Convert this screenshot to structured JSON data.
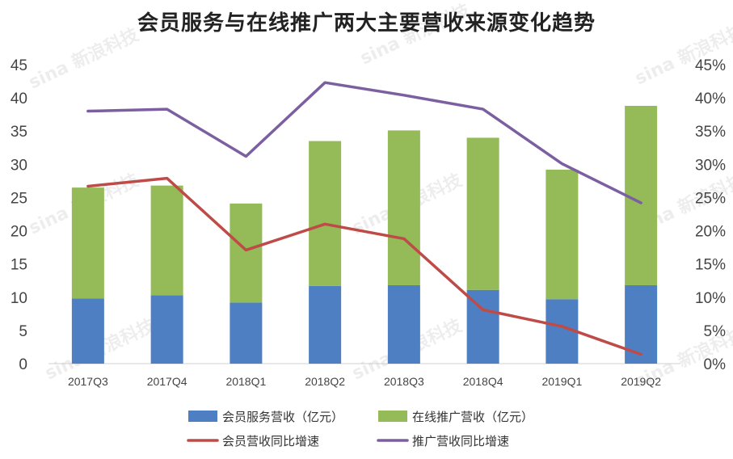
{
  "chart_data": {
    "type": "bar",
    "title": "会员服务与在线推广两大主要营收来源变化趋势",
    "categories": [
      "2017Q3",
      "2017Q4",
      "2018Q1",
      "2018Q2",
      "2018Q3",
      "2018Q4",
      "2019Q1",
      "2019Q2"
    ],
    "series": [
      {
        "name": "会员服务营收（亿元）",
        "type": "stacked-bar",
        "axis": "left",
        "color": "#4e7fc2",
        "values": [
          9.8,
          10.3,
          9.2,
          11.7,
          11.8,
          11.1,
          9.7,
          11.8
        ]
      },
      {
        "name": "在线推广营收（亿元）",
        "type": "stacked-bar",
        "axis": "left",
        "color": "#94bb58",
        "values": [
          16.7,
          16.5,
          14.9,
          21.8,
          23.3,
          22.9,
          19.5,
          27.0
        ]
      },
      {
        "name": "会员营收同比增速",
        "type": "line",
        "axis": "right",
        "color": "#be4b48",
        "values": [
          26.7,
          27.9,
          17.1,
          21.0,
          18.8,
          8.1,
          5.6,
          1.4
        ]
      },
      {
        "name": "推广营收同比增速",
        "type": "line",
        "axis": "right",
        "color": "#7c5fa0",
        "values": [
          38.0,
          38.3,
          31.2,
          42.3,
          40.4,
          38.3,
          30.1,
          24.2
        ]
      }
    ],
    "ylim_left": [
      0,
      45
    ],
    "yticks_left": [
      "0",
      "5",
      "10",
      "15",
      "20",
      "25",
      "30",
      "35",
      "40",
      "45"
    ],
    "ylim_right": [
      0,
      45
    ],
    "yticks_right": [
      "0%",
      "5%",
      "10%",
      "15%",
      "20%",
      "25%",
      "30%",
      "35%",
      "40%",
      "45%"
    ],
    "grid": false,
    "legend_position": "bottom",
    "watermark": "sina 新浪科技"
  }
}
